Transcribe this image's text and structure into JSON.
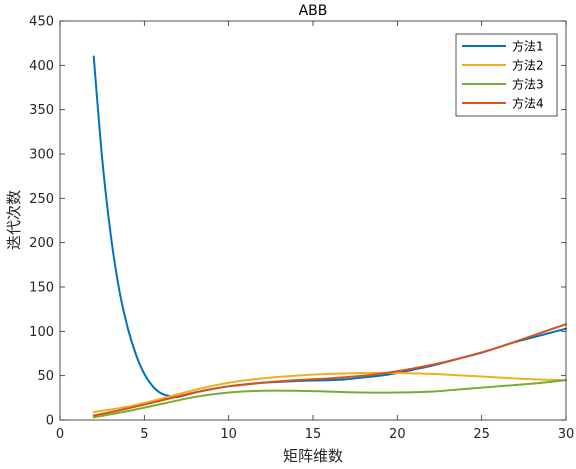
{
  "chart_data": {
    "type": "line",
    "title": "ABB",
    "xlabel": "矩阵维数",
    "ylabel": "迭代次数",
    "xlim": [
      0,
      30
    ],
    "ylim": [
      0,
      450
    ],
    "xticks": [
      0,
      5,
      10,
      15,
      20,
      25,
      30
    ],
    "yticks": [
      0,
      50,
      100,
      150,
      200,
      250,
      300,
      350,
      400,
      450
    ],
    "grid": false,
    "legend_position": "top-right",
    "series": [
      {
        "name": "方法1",
        "color": "#0072BD",
        "x": [
          2,
          2.5,
          3,
          3.5,
          4,
          4.5,
          5,
          5.5,
          6,
          6.5,
          7,
          8,
          9,
          10,
          11,
          12,
          13,
          14,
          15,
          16,
          17,
          18,
          19,
          20,
          21,
          22,
          23,
          24,
          25,
          26,
          27,
          28,
          29,
          30
        ],
        "y": [
          410,
          295,
          210,
          148,
          105,
          74,
          52,
          38,
          30,
          27,
          26,
          31,
          35,
          38,
          40,
          42,
          43,
          44,
          44.5,
          45,
          46,
          48,
          50,
          53,
          57,
          61,
          66,
          71,
          76,
          82,
          88,
          93,
          98,
          103
        ]
      },
      {
        "name": "方法2",
        "color": "#EDB120",
        "x": [
          2,
          4,
          6,
          8,
          10,
          12,
          14,
          16,
          18,
          20,
          22,
          24,
          26,
          28,
          30
        ],
        "y": [
          9,
          15,
          24,
          34,
          42,
          47,
          50,
          52,
          53,
          53,
          52,
          50,
          48,
          46,
          45
        ]
      },
      {
        "name": "方法3",
        "color": "#77AC30",
        "x": [
          2,
          4,
          6,
          8,
          10,
          12,
          14,
          16,
          18,
          20,
          22,
          24,
          26,
          28,
          30
        ],
        "y": [
          3,
          10,
          18,
          26,
          31,
          33,
          33,
          32,
          31,
          31,
          32,
          35,
          38,
          41,
          45
        ]
      },
      {
        "name": "方法4",
        "color": "#D95319",
        "x": [
          2,
          4,
          6,
          8,
          10,
          12,
          14,
          16,
          18,
          20,
          22,
          24,
          26,
          28,
          30
        ],
        "y": [
          5,
          13,
          22,
          31,
          38,
          42,
          45,
          47,
          50,
          55,
          62,
          71,
          82,
          95,
          108
        ]
      }
    ]
  }
}
